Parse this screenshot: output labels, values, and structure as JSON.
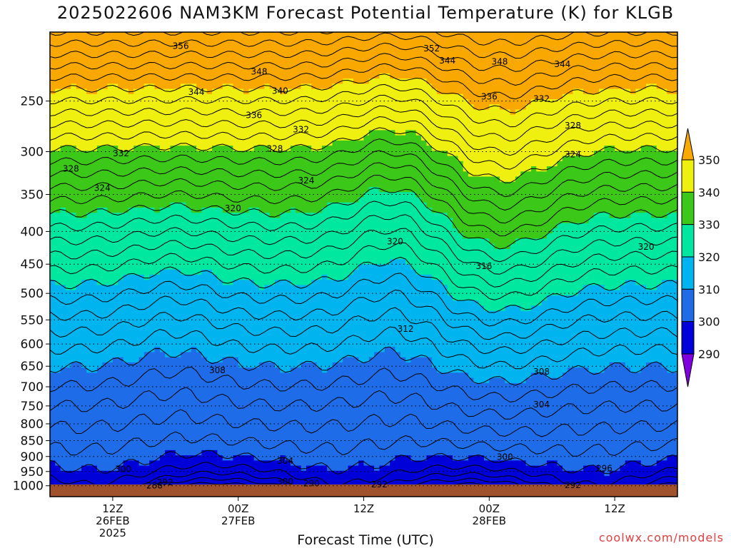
{
  "chart_data": {
    "type": "contour",
    "title": "2025022606 NAM3KM Forecast Potential Temperature (K) for KLGB",
    "xlabel": "Forecast Time (UTC)",
    "credit": "coolwx.com/models",
    "y_axis": {
      "scale": "log",
      "inverted": true,
      "ylim": [
        195,
        1040
      ],
      "ticks": [
        250,
        300,
        350,
        400,
        450,
        500,
        550,
        600,
        650,
        700,
        750,
        800,
        850,
        900,
        950,
        1000
      ]
    },
    "x_axis": {
      "xlim_hours": [
        6,
        66
      ],
      "ticks": [
        {
          "hour": 12,
          "lines": [
            "12Z",
            "26FEB",
            "2025"
          ]
        },
        {
          "hour": 24,
          "lines": [
            "00Z",
            "27FEB"
          ]
        },
        {
          "hour": 36,
          "lines": [
            "12Z"
          ]
        },
        {
          "hour": 48,
          "lines": [
            "00Z",
            "28FEB"
          ]
        },
        {
          "hour": 60,
          "lines": [
            "12Z"
          ]
        }
      ]
    },
    "colorbar": {
      "levels": [
        290,
        300,
        310,
        320,
        330,
        340,
        350
      ],
      "bands": [
        {
          "from": 280,
          "to": 290,
          "color": "#8000e0"
        },
        {
          "from": 290,
          "to": 300,
          "color": "#0000d8"
        },
        {
          "from": 300,
          "to": 310,
          "color": "#1e6ce8"
        },
        {
          "from": 310,
          "to": 320,
          "color": "#00b4f0"
        },
        {
          "from": 320,
          "to": 330,
          "color": "#00e8a0"
        },
        {
          "from": 330,
          "to": 340,
          "color": "#3cc818"
        },
        {
          "from": 340,
          "to": 350,
          "color": "#f0f010"
        },
        {
          "from": 350,
          "to": 360,
          "color": "#f8a800"
        }
      ]
    },
    "terrain_color": "#a0522d",
    "contour_interval": 2,
    "contour_labels": [
      {
        "value": 356,
        "hour": 18.5,
        "p": 205
      },
      {
        "value": 352,
        "hour": 42.5,
        "p": 207
      },
      {
        "value": 348,
        "hour": 26,
        "p": 225
      },
      {
        "value": 348,
        "hour": 49,
        "p": 217
      },
      {
        "value": 344,
        "hour": 44,
        "p": 216
      },
      {
        "value": 344,
        "hour": 55,
        "p": 219
      },
      {
        "value": 344,
        "hour": 20,
        "p": 242
      },
      {
        "value": 340,
        "hour": 28,
        "p": 241
      },
      {
        "value": 336,
        "hour": 25.5,
        "p": 263
      },
      {
        "value": 336,
        "hour": 48,
        "p": 246
      },
      {
        "value": 332,
        "hour": 53,
        "p": 248
      },
      {
        "value": 332,
        "hour": 30,
        "p": 277
      },
      {
        "value": 332,
        "hour": 12.8,
        "p": 302
      },
      {
        "value": 328,
        "hour": 27.5,
        "p": 297
      },
      {
        "value": 328,
        "hour": 56,
        "p": 273
      },
      {
        "value": 328,
        "hour": 8,
        "p": 319
      },
      {
        "value": 324,
        "hour": 56,
        "p": 303
      },
      {
        "value": 324,
        "hour": 30.5,
        "p": 333
      },
      {
        "value": 324,
        "hour": 11,
        "p": 342
      },
      {
        "value": 320,
        "hour": 23.5,
        "p": 368
      },
      {
        "value": 320,
        "hour": 39,
        "p": 415
      },
      {
        "value": 320,
        "hour": 63,
        "p": 423
      },
      {
        "value": 316,
        "hour": 47.5,
        "p": 453
      },
      {
        "value": 312,
        "hour": 40,
        "p": 568
      },
      {
        "value": 308,
        "hour": 22,
        "p": 660
      },
      {
        "value": 308,
        "hour": 53,
        "p": 663
      },
      {
        "value": 304,
        "hour": 53,
        "p": 746
      },
      {
        "value": 304,
        "hour": 28.5,
        "p": 915
      },
      {
        "value": 300,
        "hour": 49.5,
        "p": 902
      },
      {
        "value": 300,
        "hour": 13,
        "p": 942
      },
      {
        "value": 300,
        "hour": 28.5,
        "p": 985
      },
      {
        "value": 296,
        "hour": 59,
        "p": 940
      },
      {
        "value": 292,
        "hour": 17,
        "p": 988
      },
      {
        "value": 292,
        "hour": 37.5,
        "p": 995
      },
      {
        "value": 292,
        "hour": 56,
        "p": 998
      },
      {
        "value": 288,
        "hour": 16,
        "p": 1000
      },
      {
        "value": 290,
        "hour": 31,
        "p": 992
      }
    ]
  }
}
